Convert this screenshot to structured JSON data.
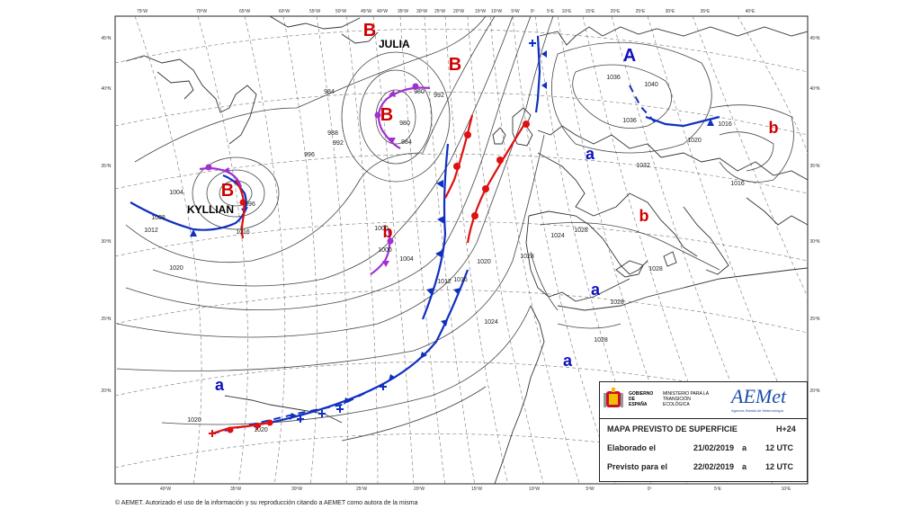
{
  "map": {
    "pressure_systems": [
      {
        "symbol": "B",
        "name": "JULIA"
      },
      {
        "symbol": "B",
        "name": ""
      },
      {
        "symbol": "B",
        "name": ""
      },
      {
        "symbol": "B",
        "name": "KYLLIAN"
      },
      {
        "symbol": "b",
        "name": ""
      },
      {
        "symbol": "A",
        "name": ""
      },
      {
        "symbol": "a",
        "name": ""
      },
      {
        "symbol": "b",
        "name": ""
      },
      {
        "symbol": "b",
        "name": ""
      },
      {
        "symbol": "a",
        "name": ""
      },
      {
        "symbol": "a",
        "name": ""
      },
      {
        "symbol": "a",
        "name": ""
      }
    ],
    "isobar_labels": [
      "980",
      "984",
      "988",
      "980",
      "984",
      "992",
      "996",
      "992",
      "996",
      "1000",
      "1004",
      "1008",
      "1012",
      "1016",
      "1004",
      "1000",
      "1012",
      "1016",
      "1020",
      "1024",
      "1028",
      "1028",
      "1028",
      "1028",
      "1028",
      "1024",
      "1020",
      "1036",
      "1040",
      "1036",
      "1032",
      "1020",
      "1016",
      "1016",
      "1020",
      "1020"
    ],
    "lon_labels": [
      "75ºW",
      "70ºW",
      "65ºW",
      "60ºW",
      "55ºW",
      "50ºW",
      "45ºW",
      "40ºW",
      "35ºW",
      "30ºW",
      "25ºW",
      "20ºW",
      "15ºW",
      "10ºW",
      "5ºW",
      "0º",
      "5ºE",
      "10ºE",
      "15ºE",
      "20ºE",
      "25ºE",
      "30ºE",
      "35ºE",
      "40ºE"
    ],
    "lon_labels_bottom": [
      "40ºW",
      "35ºW",
      "30ºW",
      "25ºW",
      "20ºW",
      "15ºW",
      "10ºW",
      "5ºW",
      "0º",
      "5ºE",
      "10ºE"
    ],
    "lat_labels": [
      "45ºN",
      "40ºN",
      "35ºN",
      "30ºN",
      "25ºN",
      "20ºN"
    ],
    "colors": {
      "low": "#d00000",
      "high": "#1010c0",
      "occluded": "#a030d0",
      "isobar": "#444444",
      "land": "#333333",
      "grid": "#666666"
    }
  },
  "info": {
    "gov_line1": "GOBIERNO DE ESPAÑA",
    "gov_line2": "MINISTERIO PARA LA TRANSICIÓN ECOLÓGICA",
    "logo": "AEMet",
    "logo_sub": "Agencia Estatal de Meteorología",
    "title": "MAPA PREVISTO DE SUPERFICIE",
    "horizon": "H+24",
    "elaborado_label": "Elaborado el",
    "elaborado_date": "21/02/2019",
    "elaborado_a": "a",
    "elaborado_time": "12 UTC",
    "previsto_label": "Previsto para el",
    "previsto_date": "22/02/2019",
    "previsto_a": "a",
    "previsto_time": "12 UTC"
  },
  "copyright": "© AEMET. Autorizado el uso de la información y su reproducción citando a AEMET como autora de la misma"
}
